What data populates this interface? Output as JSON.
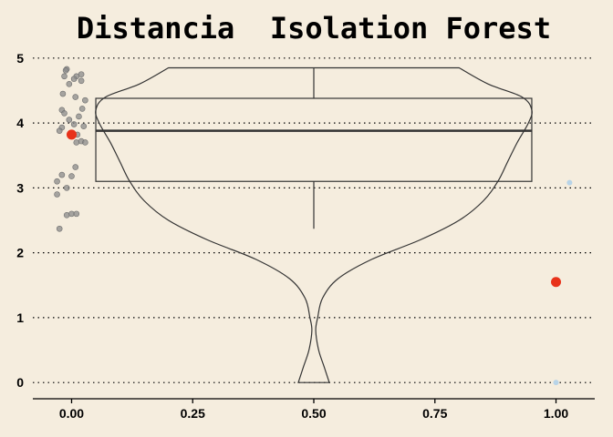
{
  "chart_data": {
    "type": "violin",
    "title": "Distancia  Isolation Forest",
    "xlabel": "",
    "ylabel": "",
    "xlim": [
      -0.08,
      1.08
    ],
    "ylim": [
      -0.25,
      5.25
    ],
    "x_ticks": [
      0.0,
      0.25,
      0.5,
      0.75,
      1.0
    ],
    "x_tick_labels": [
      "0.00",
      "0.25",
      "0.50",
      "0.75",
      "1.00"
    ],
    "y_ticks": [
      0,
      1,
      2,
      3,
      4,
      5
    ],
    "y_tick_labels": [
      "0",
      "1",
      "2",
      "3",
      "4",
      "5"
    ],
    "grid": "horizontal dotted",
    "violin": {
      "x": 0.5,
      "min": 0.0,
      "max": 4.85,
      "profile": [
        [
          0.0,
          0.032
        ],
        [
          0.25,
          0.021
        ],
        [
          0.5,
          0.01
        ],
        [
          0.8,
          0.004
        ],
        [
          1.0,
          0.008
        ],
        [
          1.3,
          0.018
        ],
        [
          1.6,
          0.05
        ],
        [
          1.9,
          0.12
        ],
        [
          2.2,
          0.22
        ],
        [
          2.5,
          0.3
        ],
        [
          2.8,
          0.35
        ],
        [
          3.1,
          0.38
        ],
        [
          3.4,
          0.4
        ],
        [
          3.7,
          0.42
        ],
        [
          4.0,
          0.443
        ],
        [
          4.2,
          0.45
        ],
        [
          4.4,
          0.43
        ],
        [
          4.6,
          0.36
        ],
        [
          4.85,
          0.3
        ]
      ]
    },
    "box": {
      "x_from": 0.05,
      "x_to": 0.95,
      "q1": 3.1,
      "median": 3.88,
      "q3": 4.38,
      "whisker_low": 2.37,
      "whisker_high": 4.85
    },
    "series": [
      {
        "role": "jittered observations near x=0",
        "color": "#8a8a8a",
        "points": [
          [
            -0.01,
            4.83
          ],
          [
            -0.012,
            4.81
          ],
          [
            0.02,
            4.75
          ],
          [
            0.01,
            4.72
          ],
          [
            0.005,
            4.68
          ],
          [
            0.02,
            4.65
          ],
          [
            -0.005,
            4.6
          ],
          [
            -0.015,
            4.72
          ],
          [
            -0.018,
            4.45
          ],
          [
            0.008,
            4.4
          ],
          [
            0.028,
            4.35
          ],
          [
            0.022,
            4.22
          ],
          [
            -0.02,
            4.2
          ],
          [
            -0.015,
            4.15
          ],
          [
            0.015,
            4.1
          ],
          [
            -0.005,
            4.05
          ],
          [
            0.005,
            3.98
          ],
          [
            0.025,
            3.95
          ],
          [
            -0.02,
            3.93
          ],
          [
            -0.025,
            3.88
          ],
          [
            0.012,
            3.82
          ],
          [
            0.02,
            3.72
          ],
          [
            0.028,
            3.7
          ],
          [
            0.01,
            3.7
          ],
          [
            0.008,
            3.32
          ],
          [
            -0.02,
            3.2
          ],
          [
            0.0,
            3.18
          ],
          [
            -0.03,
            3.1
          ],
          [
            -0.01,
            3.0
          ],
          [
            -0.03,
            2.9
          ],
          [
            -0.01,
            2.58
          ],
          [
            0.0,
            2.6
          ],
          [
            0.01,
            2.6
          ],
          [
            -0.025,
            2.37
          ]
        ]
      },
      {
        "role": "highlighted points",
        "color": "#E8321A",
        "points": [
          [
            0.0,
            3.82
          ],
          [
            1.0,
            1.55
          ]
        ]
      },
      {
        "role": "light blue points",
        "color": "#B8D4E8",
        "points": [
          [
            1.028,
            3.08
          ],
          [
            1.0,
            0.0
          ]
        ]
      }
    ]
  }
}
